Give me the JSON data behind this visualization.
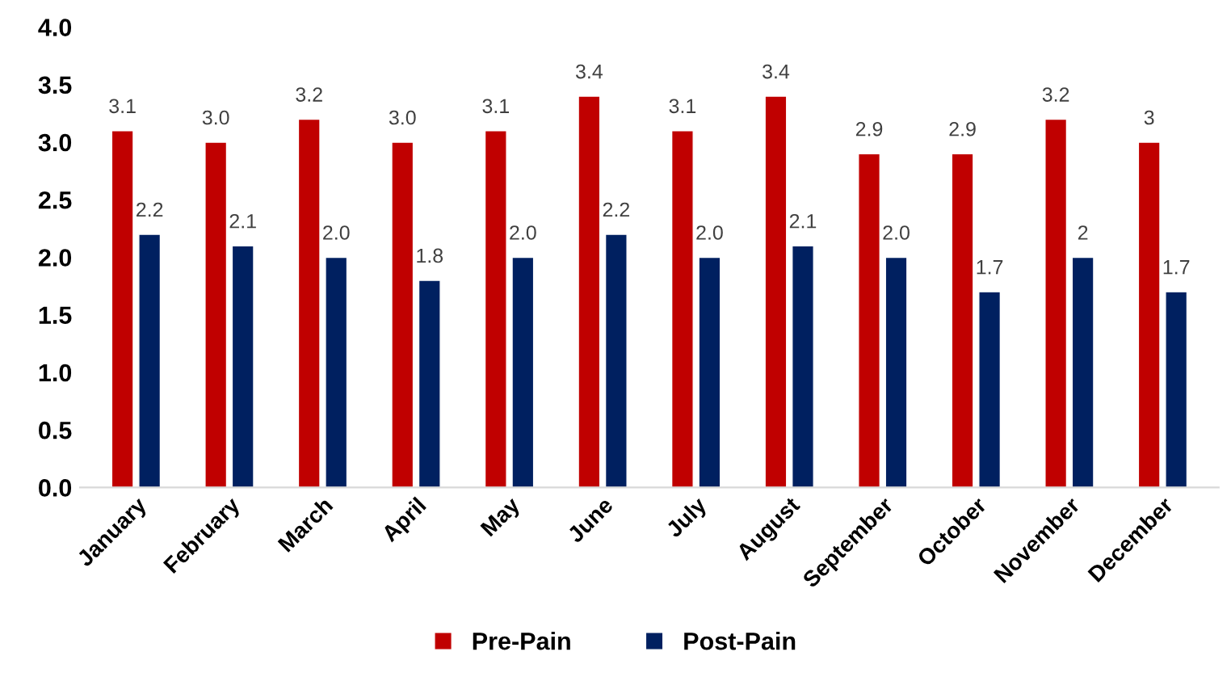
{
  "chart_data": {
    "type": "bar",
    "categories": [
      "January",
      "February",
      "March",
      "April",
      "May",
      "June",
      "July",
      "August",
      "September",
      "October",
      "November",
      "December"
    ],
    "series": [
      {
        "name": "Pre-Pain",
        "color": "#c00000",
        "values": [
          3.1,
          3.0,
          3.2,
          3.0,
          3.1,
          3.4,
          3.1,
          3.4,
          2.9,
          2.9,
          3.2,
          3
        ],
        "value_labels": [
          "3.1",
          "3.0",
          "3.2",
          "3.0",
          "3.1",
          "3.4",
          "3.1",
          "3.4",
          "2.9",
          "2.9",
          "3.2",
          "3"
        ]
      },
      {
        "name": "Post-Pain",
        "color": "#002060",
        "values": [
          2.2,
          2.1,
          2.0,
          1.8,
          2.0,
          2.2,
          2.0,
          2.1,
          2.0,
          1.7,
          2,
          1.7
        ],
        "value_labels": [
          "2.2",
          "2.1",
          "2.0",
          "1.8",
          "2.0",
          "2.2",
          "2.0",
          "2.1",
          "2.0",
          "1.7",
          "2",
          "1.7"
        ]
      }
    ],
    "ylim": [
      0,
      4
    ],
    "yticks": [
      {
        "value": 0,
        "label": "0.0"
      },
      {
        "value": 0.5,
        "label": "0.5"
      },
      {
        "value": 1,
        "label": "1.0"
      },
      {
        "value": 1.5,
        "label": "1.5"
      },
      {
        "value": 2,
        "label": "2.0"
      },
      {
        "value": 2.5,
        "label": "2.5"
      },
      {
        "value": 3,
        "label": "3.0"
      },
      {
        "value": 3.5,
        "label": "3.5"
      },
      {
        "value": 4,
        "label": "4.0"
      }
    ],
    "grid": false,
    "legend": "bottom"
  }
}
